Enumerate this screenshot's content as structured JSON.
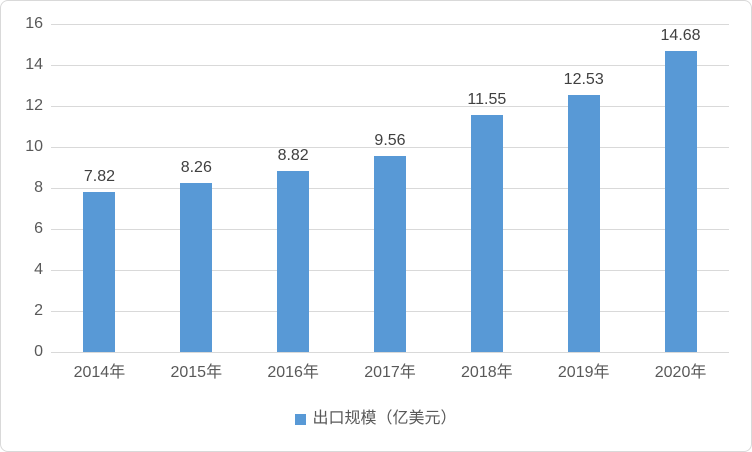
{
  "chart_data": {
    "type": "bar",
    "title": "",
    "categories": [
      "2014年",
      "2015年",
      "2016年",
      "2017年",
      "2018年",
      "2019年",
      "2020年"
    ],
    "values": [
      7.82,
      8.26,
      8.82,
      9.56,
      11.55,
      12.53,
      14.68
    ],
    "data_labels": [
      "7.82",
      "8.26",
      "8.82",
      "9.56",
      "11.55",
      "12.53",
      "14.68"
    ],
    "yticks": [
      "0",
      "2",
      "4",
      "6",
      "8",
      "10",
      "12",
      "14",
      "16"
    ],
    "ytick_values": [
      0,
      2,
      4,
      6,
      8,
      10,
      12,
      14,
      16
    ],
    "ylim": [
      0,
      16
    ],
    "xlabel": "",
    "ylabel": "",
    "grid": true,
    "legend_position": "bottom",
    "series": [
      {
        "name": "出口规模（亿美元）",
        "values": [
          7.82,
          8.26,
          8.82,
          9.56,
          11.55,
          12.53,
          14.68
        ]
      }
    ],
    "colors": {
      "bar": "#5899d6",
      "gridline": "#d9d9d9",
      "tick_label": "#595959",
      "data_label": "#404040",
      "frame_border": "#d9d9d9",
      "background": "#ffffff"
    }
  },
  "legend": {
    "label": "出口规模（亿美元）",
    "marker_color": "#5899d6"
  }
}
